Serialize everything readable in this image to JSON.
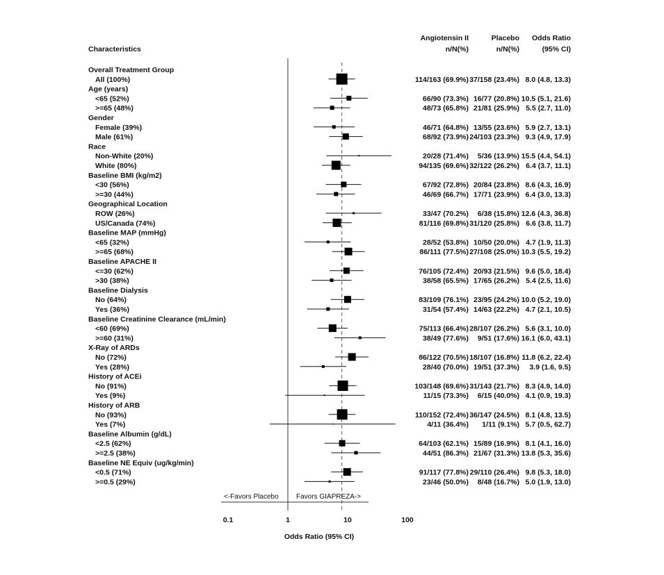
{
  "chart_data": {
    "type": "forest",
    "x_scale": "log",
    "x_range": [
      0.1,
      100
    ],
    "x_ticks": [
      "0.1",
      "1",
      "10",
      "100"
    ],
    "xlabel": "Odds Ratio (95% CI)",
    "reference_line": 1,
    "overall_estimate_line": 8.0,
    "favors_left": "<-Favors Placebo",
    "favors_right": "Favors GIAPREZA->",
    "headers": {
      "characteristics": "Characteristics",
      "col1_title": "Angiotensin II",
      "col1_sub": "n/N(%)",
      "col2_title": "Placebo",
      "col2_sub": "n/N(%)",
      "col3_title": "Odds Ratio",
      "col3_sub": "(95% CI)"
    },
    "rows": [
      {
        "kind": "group",
        "label": "Overall Treatment Group"
      },
      {
        "kind": "item",
        "label": "All (100%)",
        "ang": "114/163 (69.9%)",
        "pla": "37/158 (23.4%)",
        "or_text": "8.0 (4.8, 13.3)",
        "or": 8.0,
        "lo": 4.8,
        "hi": 13.3,
        "size": 16
      },
      {
        "kind": "group",
        "label": "Age (years)"
      },
      {
        "kind": "item",
        "label": "<65 (52%)",
        "ang": "66/90 (73.3%)",
        "pla": "16/77 (20.8%)",
        "or_text": "10.5 (5.1, 21.6)",
        "or": 10.5,
        "lo": 5.1,
        "hi": 21.6,
        "size": 7
      },
      {
        "kind": "item",
        "label": ">=65 (48%)",
        "ang": "48/73 (65.8%)",
        "pla": "21/81 (25.9%)",
        "or_text": "5.5 (2.7, 11.0)",
        "or": 5.5,
        "lo": 2.7,
        "hi": 11.0,
        "size": 6
      },
      {
        "kind": "group",
        "label": "Gender"
      },
      {
        "kind": "item",
        "label": "Female (39%)",
        "ang": "46/71 (64.8%)",
        "pla": "13/55 (23.6%)",
        "or_text": "5.9 (2.7, 13.1)",
        "or": 5.9,
        "lo": 2.7,
        "hi": 13.1,
        "size": 5
      },
      {
        "kind": "item",
        "label": "Male (61%)",
        "ang": "68/92 (73.9%)",
        "pla": "24/103 (23.3%)",
        "or_text": "9.3 (4.9, 17.9)",
        "or": 9.3,
        "lo": 4.9,
        "hi": 17.9,
        "size": 9
      },
      {
        "kind": "group",
        "label": "Race"
      },
      {
        "kind": "item",
        "label": "Non-White (20%)",
        "ang": "20/28 (71.4%)",
        "pla": "5/36 (13.9%)",
        "or_text": "15.5 (4.4, 54.1)",
        "or": 15.5,
        "lo": 4.4,
        "hi": 54.1,
        "size": 2
      },
      {
        "kind": "item",
        "label": "White (80%)",
        "ang": "94/135 (69.6%)",
        "pla": "32/122 (26.2%)",
        "or_text": "6.4 (3.7, 11.1)",
        "or": 6.4,
        "lo": 3.7,
        "hi": 11.1,
        "size": 13
      },
      {
        "kind": "group",
        "label": "Baseline BMI (kg/m2)"
      },
      {
        "kind": "item",
        "label": "<30 (56%)",
        "ang": "67/92 (72.8%)",
        "pla": "20/84 (23.8%)",
        "or_text": "8.6 (4.3, 16.9)",
        "or": 8.6,
        "lo": 4.3,
        "hi": 16.9,
        "size": 8
      },
      {
        "kind": "item",
        "label": ">=30 (44%)",
        "ang": "46/69 (66.7%)",
        "pla": "17/71 (23.9%)",
        "or_text": "6.4 (3.0, 13.3)",
        "or": 6.4,
        "lo": 3.0,
        "hi": 13.3,
        "size": 6
      },
      {
        "kind": "group",
        "label": "Geographical Location"
      },
      {
        "kind": "item",
        "label": "ROW (26%)",
        "ang": "33/47 (70.2%)",
        "pla": "6/38 (15.8%)",
        "or_text": "12.6 (4.3, 36.8)",
        "or": 12.6,
        "lo": 4.3,
        "hi": 36.8,
        "size": 3
      },
      {
        "kind": "item",
        "label": "US/Canada (74%)",
        "ang": "81/116 (69.8%)",
        "pla": "31/120 (25.8%)",
        "or_text": "6.6 (3.8, 11.7)",
        "or": 6.6,
        "lo": 3.8,
        "hi": 11.7,
        "size": 12
      },
      {
        "kind": "group",
        "label": "Baseline MAP (mmHg)"
      },
      {
        "kind": "item",
        "label": "<65 (32%)",
        "ang": "28/52 (53.8%)",
        "pla": "10/50 (20.0%)",
        "or_text": "4.7 (1.9, 11.3)",
        "or": 4.7,
        "lo": 1.9,
        "hi": 11.3,
        "size": 4
      },
      {
        "kind": "item",
        "label": ">=65 (68%)",
        "ang": "86/111 (77.5%)",
        "pla": "27/108 (25.0%)",
        "or_text": "10.3 (5.5, 19.2)",
        "or": 10.3,
        "lo": 5.5,
        "hi": 19.2,
        "size": 11
      },
      {
        "kind": "group",
        "label": "Baseline APACHE II"
      },
      {
        "kind": "item",
        "label": "<=30 (62%)",
        "ang": "76/105 (72.4%)",
        "pla": "20/93 (21.5%)",
        "or_text": "9.6 (5.0, 18.4)",
        "or": 9.6,
        "lo": 5.0,
        "hi": 18.4,
        "size": 9
      },
      {
        "kind": "item",
        "label": ">30 (38%)",
        "ang": "38/58 (65.5%)",
        "pla": "17/65 (26.2%)",
        "or_text": "5.4 (2.5, 11.6)",
        "or": 5.4,
        "lo": 2.5,
        "hi": 11.6,
        "size": 5
      },
      {
        "kind": "group",
        "label": "Baseline Dialysis"
      },
      {
        "kind": "item",
        "label": "No (64%)",
        "ang": "83/109 (76.1%)",
        "pla": "23/95 (24.2%)",
        "or_text": "10.0 (5.2, 19.0)",
        "or": 10.0,
        "lo": 5.2,
        "hi": 19.0,
        "size": 10
      },
      {
        "kind": "item",
        "label": "Yes (36%)",
        "ang": "31/54 (57.4%)",
        "pla": "14/63 (22.2%)",
        "or_text": "4.7 (2.1, 10.5)",
        "or": 4.7,
        "lo": 2.1,
        "hi": 10.5,
        "size": 5
      },
      {
        "kind": "group",
        "label": "Baseline Creatinine Clearance (mL/min)"
      },
      {
        "kind": "item",
        "label": "<60 (69%)",
        "ang": "75/113 (66.4%)",
        "pla": "28/107 (26.2%)",
        "or_text": "5.6 (3.1, 10.0)",
        "or": 5.6,
        "lo": 3.1,
        "hi": 10.0,
        "size": 11
      },
      {
        "kind": "item",
        "label": ">=60 (31%)",
        "ang": "38/49 (77.6%)",
        "pla": "9/51 (17.6%)",
        "or_text": "16.1 (6.0, 43.1)",
        "or": 16.1,
        "lo": 6.0,
        "hi": 43.1,
        "size": 4
      },
      {
        "kind": "group",
        "label": "X-Ray of ARDs"
      },
      {
        "kind": "item",
        "label": "No (72%)",
        "ang": "86/122 (70.5%)",
        "pla": "18/107 (16.8%)",
        "or_text": "11.8 (6.2, 22.4)",
        "or": 11.8,
        "lo": 6.2,
        "hi": 22.4,
        "size": 11
      },
      {
        "kind": "item",
        "label": "Yes (28%)",
        "ang": "28/40 (70.0%)",
        "pla": "19/51 (37.3%)",
        "or_text": "3.9 (1.6, 9.5)",
        "or": 3.9,
        "lo": 1.6,
        "hi": 9.5,
        "size": 4
      },
      {
        "kind": "group",
        "label": "History of ACEi"
      },
      {
        "kind": "item",
        "label": "No (91%)",
        "ang": "103/148 (69.6%)",
        "pla": "31/143 (21.7%)",
        "or_text": "8.3 (4.9, 14.0)",
        "or": 8.3,
        "lo": 4.9,
        "hi": 14.0,
        "size": 15
      },
      {
        "kind": "item",
        "label": "Yes (9%)",
        "ang": "11/15 (73.3%)",
        "pla": "6/15 (40.0%)",
        "or_text": "4.1 (0.9, 19.3)",
        "or": 4.1,
        "lo": 0.9,
        "hi": 19.3,
        "size": 2
      },
      {
        "kind": "group",
        "label": "History of ARB"
      },
      {
        "kind": "item",
        "label": "No (93%)",
        "ang": "110/152 (72.4%)",
        "pla": "36/147 (24.5%)",
        "or_text": "8.1 (4.8, 13.5)",
        "or": 8.1,
        "lo": 4.8,
        "hi": 13.5,
        "size": 15
      },
      {
        "kind": "item",
        "label": "Yes (7%)",
        "ang": "4/11 (36.4%)",
        "pla": "1/11 (9.1%)",
        "or_text": "5.7 (0.5, 62.7)",
        "or": 5.7,
        "lo": 0.5,
        "hi": 62.7,
        "size": 1.5
      },
      {
        "kind": "group",
        "label": "Baseline Albumin (g/dL)"
      },
      {
        "kind": "item",
        "label": "<2.5 (62%)",
        "ang": "64/103 (62.1%)",
        "pla": "15/89 (16.9%)",
        "or_text": "8.1 (4.1, 16.0)",
        "or": 8.1,
        "lo": 4.1,
        "hi": 16.0,
        "size": 9
      },
      {
        "kind": "item",
        "label": ">=2.5 (38%)",
        "ang": "44/51 (86.3%)",
        "pla": "21/67 (31.3%)",
        "or_text": "13.8 (5.3, 35.6)",
        "or": 13.8,
        "lo": 5.3,
        "hi": 35.6,
        "size": 5
      },
      {
        "kind": "group",
        "label": "Baseline NE Equiv (ug/kg/min)"
      },
      {
        "kind": "item",
        "label": "<0.5 (71%)",
        "ang": "91/117 (77.8%)",
        "pla": "29/110 (26.4%)",
        "or_text": "9.8 (5.3, 18.0)",
        "or": 9.8,
        "lo": 5.3,
        "hi": 18.0,
        "size": 11
      },
      {
        "kind": "item",
        "label": ">=0.5 (29%)",
        "ang": "23/46 (50.0%)",
        "pla": "8/48 (16.7%)",
        "or_text": "5.0 (1.9, 13.0)",
        "or": 5.0,
        "lo": 1.9,
        "hi": 13.0,
        "size": 3
      }
    ]
  }
}
